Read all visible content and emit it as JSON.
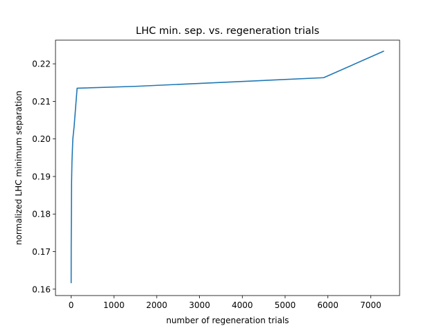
{
  "chart_data": {
    "type": "line",
    "title": "LHC min. sep. vs. regeneration trials",
    "xlabel": "number of regeneration trials",
    "ylabel": "normalized LHC minimum separation",
    "xlim": [
      -365,
      7675
    ],
    "ylim": [
      0.1583,
      0.2263
    ],
    "xticks": [
      0,
      1000,
      2000,
      3000,
      4000,
      5000,
      6000,
      7000
    ],
    "xtick_labels": [
      "0",
      "1000",
      "2000",
      "3000",
      "4000",
      "5000",
      "6000",
      "7000"
    ],
    "yticks": [
      0.16,
      0.17,
      0.18,
      0.19,
      0.2,
      0.21,
      0.22
    ],
    "ytick_labels": [
      "0.16",
      "0.17",
      "0.18",
      "0.19",
      "0.20",
      "0.21",
      "0.22"
    ],
    "grid": false,
    "series": [
      {
        "color": "#1f77b4",
        "x": [
          1,
          2,
          5,
          10,
          20,
          40,
          70,
          140,
          1500,
          5900,
          7310
        ],
        "y": [
          0.1616,
          0.171,
          0.1782,
          0.188,
          0.194,
          0.2,
          0.2033,
          0.2135,
          0.214,
          0.2163,
          0.2234
        ]
      }
    ]
  }
}
